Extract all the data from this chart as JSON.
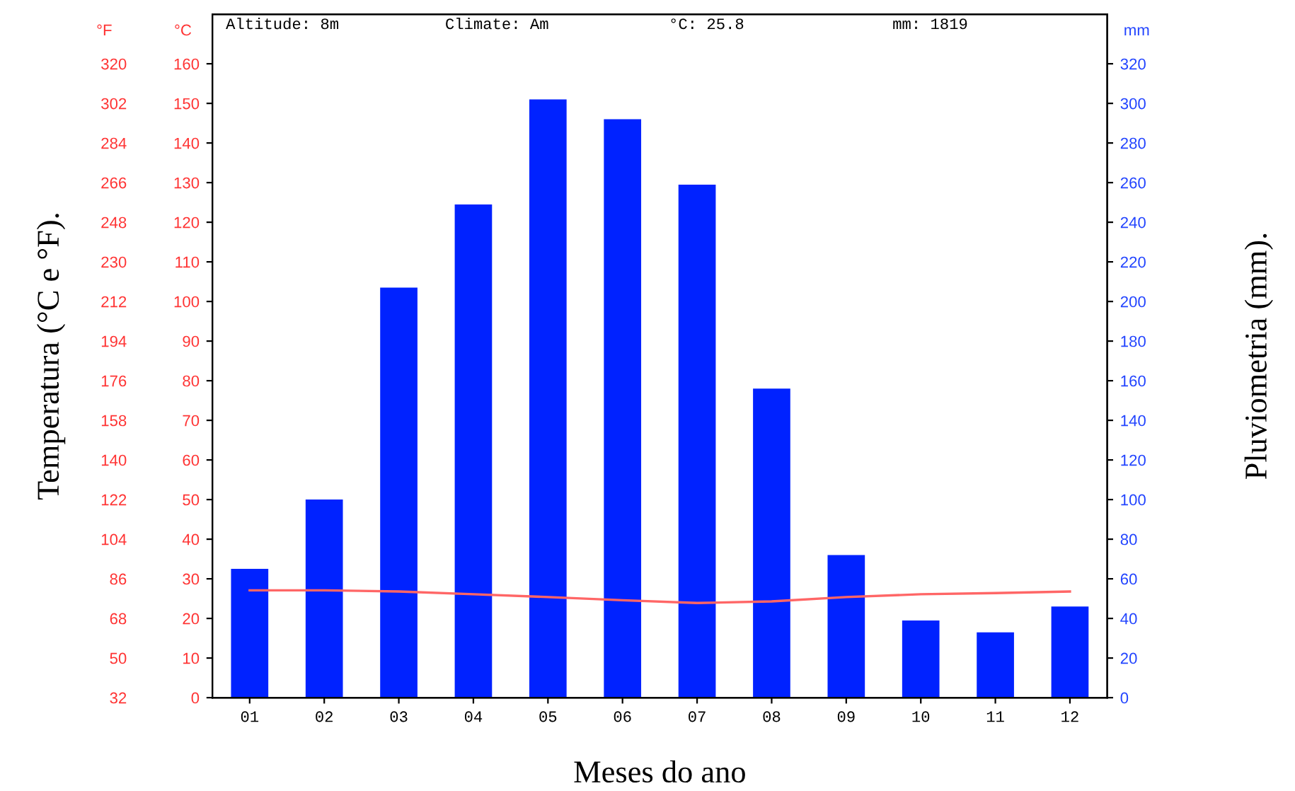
{
  "chart_data": {
    "type": "bar",
    "categories": [
      "01",
      "02",
      "03",
      "04",
      "05",
      "06",
      "07",
      "08",
      "09",
      "10",
      "11",
      "12"
    ],
    "xlabel": "Meses do ano",
    "ylabel": "Temperatura (°C e °F).",
    "y2label": "Pluviometria (mm).",
    "annotations": [
      "Altitude: 8m",
      "Climate: Am",
      "°C: 25.8",
      "mm: 1819",
      "°F",
      "°C",
      "mm"
    ],
    "series": [
      {
        "axis": "y2",
        "color": "#0022ff",
        "values": [
          65,
          100,
          207,
          249,
          302,
          292,
          259,
          156,
          72,
          39,
          33,
          46
        ]
      },
      {
        "type": "line",
        "axis": "y",
        "color": "#ff6666",
        "values": [
          27.1,
          27.1,
          26.8,
          26.1,
          25.4,
          24.6,
          23.9,
          24.3,
          25.4,
          26.1,
          26.4,
          26.8
        ]
      }
    ],
    "ylim": [
      0,
      172.5
    ],
    "yticks": [
      0,
      10,
      20,
      30,
      40,
      50,
      60,
      70,
      80,
      90,
      100,
      110,
      120,
      130,
      140,
      150,
      160
    ],
    "y2lim": [
      0,
      345
    ],
    "y2ticks": [
      0,
      20,
      40,
      60,
      80,
      100,
      120,
      140,
      160,
      180,
      200,
      220,
      240,
      260,
      280,
      300,
      320
    ],
    "y3lim": [
      32,
      342.5
    ],
    "y3ticks": [
      32,
      50,
      68,
      86,
      104,
      122,
      140,
      158,
      176,
      194,
      212,
      230,
      248,
      266,
      284,
      302,
      320
    ],
    "grid": false,
    "legend": false
  }
}
